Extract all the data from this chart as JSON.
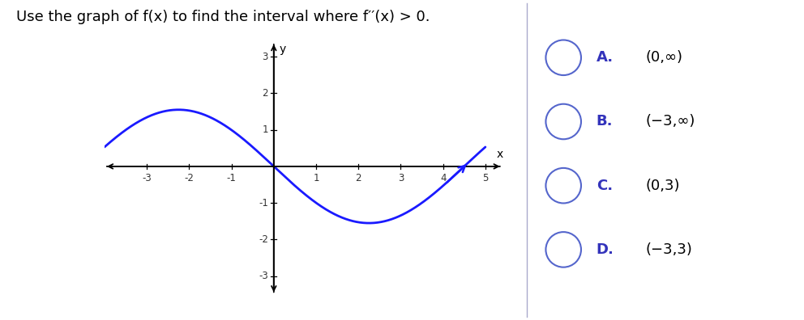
{
  "title": "Use the graph of f(x) to find the interval where f′′(x) > 0.",
  "title_fontsize": 13,
  "curve_color": "#1a1aff",
  "curve_linewidth": 2.0,
  "background_color": "#ffffff",
  "xlim": [
    -4.0,
    5.5
  ],
  "ylim": [
    -3.5,
    3.5
  ],
  "xticks": [
    -3,
    -2,
    -1,
    1,
    2,
    3,
    4,
    5
  ],
  "yticks": [
    -3,
    -2,
    -1,
    1,
    2,
    3
  ],
  "curve_A": 1.55,
  "curve_period": 9.0,
  "curve_shift": 0.0,
  "options": [
    {
      "label": "A.",
      "text": "(0,∞)"
    },
    {
      "label": "B.",
      "text": "(−3,∞)"
    },
    {
      "label": "C.",
      "text": "(0,3)"
    },
    {
      "label": "D.",
      "text": "(−3,3)"
    }
  ],
  "option_label_color": "#3333bb",
  "option_text_color": "#000000",
  "circle_color": "#5566cc",
  "divider_color": "#aaaacc"
}
